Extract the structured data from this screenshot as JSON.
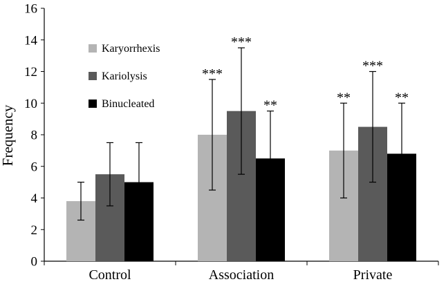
{
  "chart_data": {
    "type": "bar",
    "title": "",
    "xlabel": "",
    "ylabel": "Frequency",
    "ylim": [
      0,
      16
    ],
    "yticks": [
      0,
      2,
      4,
      6,
      8,
      10,
      12,
      14,
      16
    ],
    "categories": [
      "Control",
      "Association",
      "Private"
    ],
    "grid": false,
    "legend_position": "top-left",
    "series": [
      {
        "name": "Karyorrhexis",
        "color": "#b4b4b4",
        "values": [
          3.8,
          8.0,
          7.0
        ],
        "error": [
          1.2,
          3.5,
          3.0
        ],
        "significance": [
          "",
          "***",
          "**"
        ]
      },
      {
        "name": "Kariolysis",
        "color": "#5a5a5a",
        "values": [
          5.5,
          9.5,
          8.5
        ],
        "error": [
          2.0,
          4.0,
          3.5
        ],
        "significance": [
          "",
          "***",
          "***"
        ]
      },
      {
        "name": "Binucleated",
        "color": "#000000",
        "values": [
          5.0,
          6.5,
          6.8
        ],
        "error": [
          2.5,
          3.0,
          3.2
        ],
        "significance": [
          "",
          "**",
          "**"
        ]
      }
    ]
  }
}
